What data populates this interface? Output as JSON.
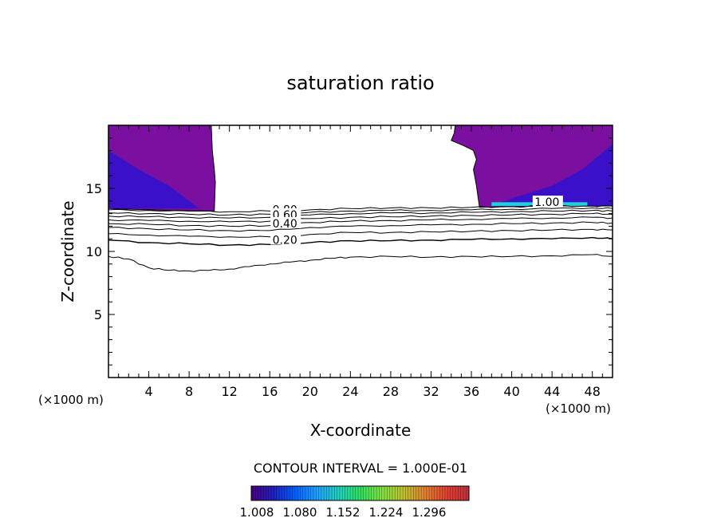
{
  "chart_data": {
    "type": "contour",
    "title": "saturation ratio",
    "xlabel": "X-coordinate",
    "ylabel": "Z-coordinate",
    "x_unit_left": "(×1000 m)",
    "x_unit_right": "(×1000 m)",
    "xlim": [
      0,
      50
    ],
    "ylim": [
      0,
      20
    ],
    "x_ticks": [
      "4",
      "8",
      "12",
      "16",
      "20",
      "24",
      "28",
      "32",
      "36",
      "40",
      "44",
      "48"
    ],
    "y_ticks": [
      "5",
      "10",
      "15"
    ],
    "contour_interval_text": "CONTOUR INTERVAL = 1.000E-01",
    "contour_labels": [
      {
        "text": "0.80",
        "x": 17.5,
        "z": 13.0
      },
      {
        "text": "0.60",
        "x": 17.5,
        "z": 12.6
      },
      {
        "text": "0.40",
        "x": 17.5,
        "z": 11.9
      },
      {
        "text": "0.20",
        "x": 17.5,
        "z": 10.6
      },
      {
        "text": "1.00",
        "x": 43.5,
        "z": 13.6
      }
    ],
    "contour_lines": [
      {
        "level": 0.1,
        "points": [
          [
            0,
            9.6
          ],
          [
            2,
            9.4
          ],
          [
            4,
            8.7
          ],
          [
            6,
            8.5
          ],
          [
            8,
            8.45
          ],
          [
            10,
            8.5
          ],
          [
            12,
            8.6
          ],
          [
            14,
            8.8
          ],
          [
            16,
            9.0
          ],
          [
            18,
            9.15
          ],
          [
            20,
            9.3
          ],
          [
            22,
            9.45
          ],
          [
            24,
            9.55
          ],
          [
            28,
            9.6
          ],
          [
            32,
            9.55
          ],
          [
            36,
            9.6
          ],
          [
            40,
            9.6
          ],
          [
            44,
            9.65
          ],
          [
            48,
            9.75
          ],
          [
            50,
            9.6
          ]
        ]
      },
      {
        "level": 0.2,
        "points": [
          [
            0,
            10.9
          ],
          [
            4,
            10.7
          ],
          [
            8,
            10.6
          ],
          [
            12,
            10.5
          ],
          [
            16,
            10.55
          ],
          [
            20,
            10.7
          ],
          [
            24,
            10.85
          ],
          [
            28,
            10.85
          ],
          [
            32,
            10.9
          ],
          [
            36,
            10.95
          ],
          [
            40,
            11.0
          ],
          [
            44,
            11.0
          ],
          [
            48,
            11.1
          ],
          [
            50,
            11.0
          ]
        ]
      },
      {
        "level": 0.3,
        "points": [
          [
            0,
            11.4
          ],
          [
            4,
            11.3
          ],
          [
            8,
            11.2
          ],
          [
            12,
            11.15
          ],
          [
            16,
            11.15
          ],
          [
            20,
            11.35
          ],
          [
            24,
            11.5
          ],
          [
            28,
            11.5
          ],
          [
            32,
            11.55
          ],
          [
            36,
            11.6
          ],
          [
            40,
            11.65
          ],
          [
            44,
            11.7
          ],
          [
            48,
            11.75
          ],
          [
            50,
            11.7
          ]
        ]
      },
      {
        "level": 0.4,
        "points": [
          [
            0,
            11.9
          ],
          [
            4,
            11.8
          ],
          [
            8,
            11.7
          ],
          [
            12,
            11.65
          ],
          [
            16,
            11.65
          ],
          [
            20,
            11.9
          ],
          [
            24,
            12.0
          ],
          [
            28,
            12.05
          ],
          [
            32,
            12.1
          ],
          [
            36,
            12.15
          ],
          [
            40,
            12.2
          ],
          [
            44,
            12.25
          ],
          [
            48,
            12.3
          ],
          [
            50,
            12.25
          ]
        ]
      },
      {
        "level": 0.5,
        "points": [
          [
            0,
            12.2
          ],
          [
            4,
            12.15
          ],
          [
            8,
            12.05
          ],
          [
            12,
            12.0
          ],
          [
            16,
            12.05
          ],
          [
            20,
            12.3
          ],
          [
            24,
            12.4
          ],
          [
            28,
            12.45
          ],
          [
            32,
            12.5
          ],
          [
            36,
            12.55
          ],
          [
            40,
            12.6
          ],
          [
            44,
            12.65
          ],
          [
            48,
            12.7
          ],
          [
            50,
            12.65
          ]
        ]
      },
      {
        "level": 0.6,
        "points": [
          [
            0,
            12.5
          ],
          [
            4,
            12.45
          ],
          [
            8,
            12.4
          ],
          [
            12,
            12.35
          ],
          [
            16,
            12.4
          ],
          [
            20,
            12.6
          ],
          [
            24,
            12.7
          ],
          [
            28,
            12.75
          ],
          [
            32,
            12.8
          ],
          [
            36,
            12.85
          ],
          [
            40,
            12.9
          ],
          [
            44,
            12.95
          ],
          [
            48,
            13.0
          ],
          [
            50,
            12.95
          ]
        ]
      },
      {
        "level": 0.7,
        "points": [
          [
            0,
            12.8
          ],
          [
            4,
            12.75
          ],
          [
            8,
            12.7
          ],
          [
            12,
            12.65
          ],
          [
            16,
            12.7
          ],
          [
            20,
            12.9
          ],
          [
            24,
            13.0
          ],
          [
            28,
            13.05
          ],
          [
            32,
            13.05
          ],
          [
            36,
            13.1
          ],
          [
            40,
            13.15
          ],
          [
            44,
            13.2
          ],
          [
            48,
            13.25
          ],
          [
            50,
            13.2
          ]
        ]
      },
      {
        "level": 0.8,
        "points": [
          [
            0,
            13.05
          ],
          [
            4,
            13.0
          ],
          [
            8,
            12.95
          ],
          [
            12,
            12.9
          ],
          [
            16,
            12.95
          ],
          [
            20,
            13.1
          ],
          [
            24,
            13.2
          ],
          [
            28,
            13.25
          ],
          [
            32,
            13.25
          ],
          [
            36,
            13.3
          ],
          [
            40,
            13.35
          ],
          [
            44,
            13.4
          ],
          [
            48,
            13.45
          ],
          [
            50,
            13.4
          ]
        ]
      },
      {
        "level": 0.9,
        "points": [
          [
            0,
            13.3
          ],
          [
            4,
            13.25
          ],
          [
            8,
            13.2
          ],
          [
            12,
            13.15
          ],
          [
            16,
            13.2
          ],
          [
            20,
            13.3
          ],
          [
            24,
            13.4
          ],
          [
            28,
            13.45
          ],
          [
            32,
            13.45
          ],
          [
            36,
            13.5
          ],
          [
            40,
            13.55
          ],
          [
            44,
            13.6
          ],
          [
            48,
            13.6
          ],
          [
            50,
            13.6
          ]
        ]
      }
    ],
    "shaded_regions": [
      {
        "name": "left-supersaturated-region",
        "color": "#7a0fa0",
        "points": [
          [
            0,
            20
          ],
          [
            10.2,
            20
          ],
          [
            10.3,
            18
          ],
          [
            10.5,
            16.5
          ],
          [
            10.6,
            15.5
          ],
          [
            10.5,
            13.2
          ],
          [
            8,
            13.2
          ],
          [
            4,
            13.3
          ],
          [
            0,
            13.4
          ]
        ]
      },
      {
        "name": "right-supersaturated-region",
        "color": "#7a0fa0",
        "points": [
          [
            50,
            20
          ],
          [
            34.4,
            20
          ],
          [
            34.3,
            19.4
          ],
          [
            34.0,
            18.8
          ],
          [
            35.2,
            18.4
          ],
          [
            36.2,
            18.0
          ],
          [
            36.5,
            17.3
          ],
          [
            36.2,
            16.5
          ],
          [
            36.5,
            15.2
          ],
          [
            36.8,
            13.5
          ],
          [
            40,
            13.55
          ],
          [
            44,
            13.6
          ],
          [
            48,
            13.6
          ],
          [
            50,
            13.6
          ]
        ]
      },
      {
        "name": "left-blue-core",
        "color": "#3a10c8",
        "points": [
          [
            0,
            18
          ],
          [
            3,
            16.5
          ],
          [
            6,
            15.2
          ],
          [
            8,
            14
          ],
          [
            9,
            13.4
          ],
          [
            0,
            13.4
          ]
        ]
      },
      {
        "name": "right-blue-core",
        "color": "#3a10c8",
        "points": [
          [
            50,
            18.5
          ],
          [
            47,
            16.5
          ],
          [
            44,
            15.2
          ],
          [
            40,
            14.2
          ],
          [
            38,
            13.6
          ],
          [
            50,
            13.6
          ]
        ]
      },
      {
        "name": "right-cyan-band",
        "color": "#20d0e0",
        "points": [
          [
            38,
            13.9
          ],
          [
            47.5,
            13.9
          ],
          [
            47.5,
            13.6
          ],
          [
            38,
            13.6
          ]
        ]
      }
    ],
    "colorbar": {
      "ticks": [
        "1.008",
        "1.080",
        "1.152",
        "1.224",
        "1.296"
      ],
      "colors": [
        "#4b0082",
        "#2020c0",
        "#0060ff",
        "#20a0ff",
        "#20d0c0",
        "#30e060",
        "#80e040",
        "#c0c030",
        "#e08030",
        "#e04030",
        "#c03040"
      ]
    }
  }
}
